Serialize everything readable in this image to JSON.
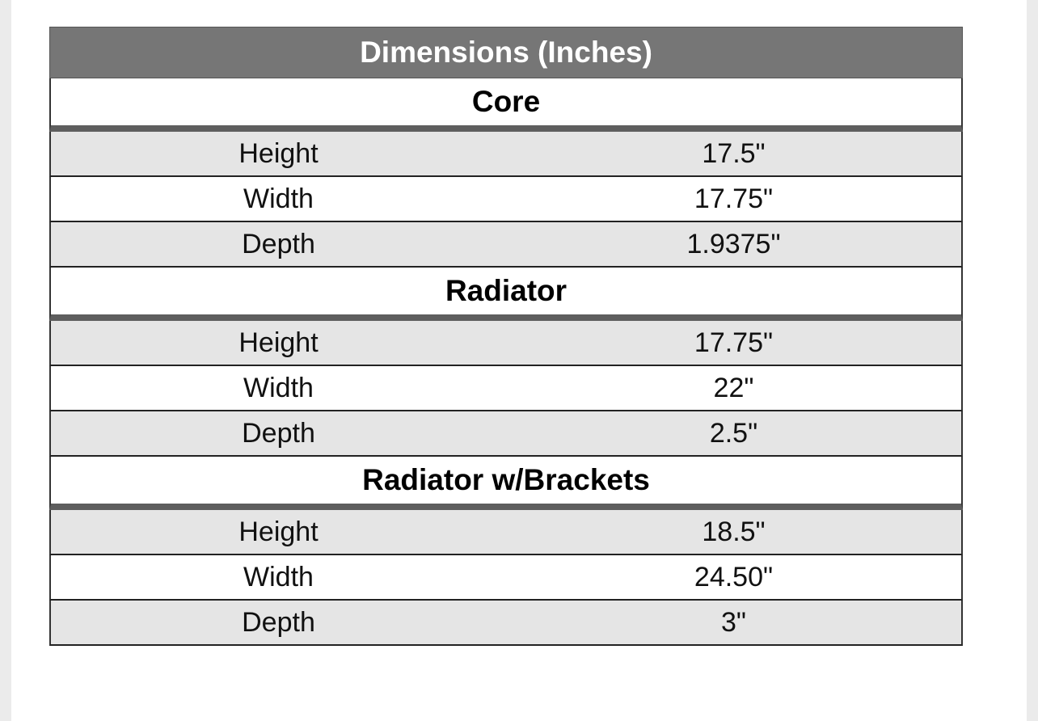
{
  "table": {
    "title": "Dimensions (Inches)",
    "sections": [
      {
        "name": "Core",
        "rows": [
          [
            "Height",
            "17.5\""
          ],
          [
            "Width",
            "17.75\""
          ],
          [
            "Depth",
            "1.9375\""
          ]
        ]
      },
      {
        "name": "Radiator",
        "rows": [
          [
            "Height",
            "17.75\""
          ],
          [
            "Width",
            "22\""
          ],
          [
            "Depth",
            "2.5\""
          ]
        ]
      },
      {
        "name": "Radiator w/Brackets",
        "rows": [
          [
            "Height",
            "18.5\""
          ],
          [
            "Width",
            "24.50\""
          ],
          [
            "Depth",
            "3\""
          ]
        ]
      }
    ]
  }
}
